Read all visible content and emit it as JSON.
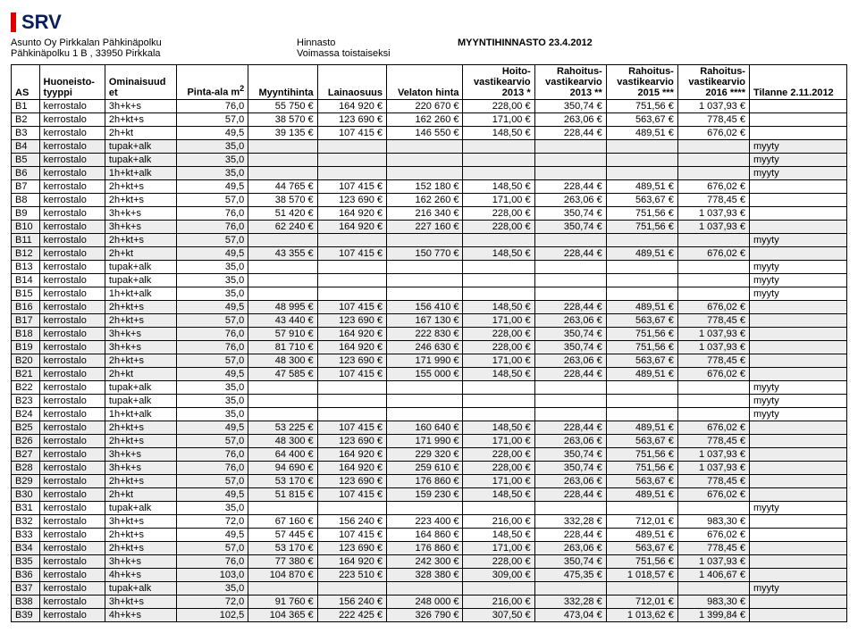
{
  "logo_text": "SRV",
  "header": {
    "line1_left": "Asunto Oy Pirkkalan Pähkinäpolku",
    "line1_mid": "Hinnasto",
    "line1_right": "MYYNTIHINNASTO 23.4.2012",
    "line2_left": "Pähkinäpolku 1 B , 33950 Pirkkala",
    "line2_mid": "Voimassa toistaiseksi"
  },
  "columns": [
    {
      "key": "as",
      "label": "AS",
      "align": "left"
    },
    {
      "key": "huoneisto",
      "label": "Huoneisto-<br>tyyppi",
      "align": "left"
    },
    {
      "key": "omin",
      "label": "Ominaisuud<br>et",
      "align": "left"
    },
    {
      "key": "pinta",
      "label": "Pinta-ala m<sup>2</sup>",
      "align": "right"
    },
    {
      "key": "myyntihinta",
      "label": "Myyntihinta",
      "align": "right"
    },
    {
      "key": "lainaosuus",
      "label": "Lainaosuus",
      "align": "right"
    },
    {
      "key": "velaton",
      "label": "Velaton hinta",
      "align": "right"
    },
    {
      "key": "hoito",
      "label": "Hoito-<br>vastikearvio<br>2013 *",
      "align": "right"
    },
    {
      "key": "r2013",
      "label": "Rahoitus-<br>vastikearvio<br>2013 **",
      "align": "right"
    },
    {
      "key": "r2015",
      "label": "Rahoitus-<br>vastikearvio<br>2015 ***",
      "align": "right"
    },
    {
      "key": "r2016",
      "label": "Rahoitus-<br>vastikearvio<br>2016 ****",
      "align": "right"
    },
    {
      "key": "tilanne",
      "label": "Tilanne 2.11.2012",
      "align": "left"
    }
  ],
  "rows": [
    {
      "as": "B1",
      "huoneisto": "kerrostalo",
      "omin": "3h+k+s",
      "pinta": "76,0",
      "myyntihinta": "55 750 €",
      "lainaosuus": "164 920 €",
      "velaton": "220 670 €",
      "hoito": "228,00 €",
      "r2013": "350,74 €",
      "r2015": "751,56 €",
      "r2016": "1 037,93 €",
      "tilanne": "",
      "shade": false
    },
    {
      "as": "B2",
      "huoneisto": "kerrostalo",
      "omin": "2h+kt+s",
      "pinta": "57,0",
      "myyntihinta": "38 570 €",
      "lainaosuus": "123 690 €",
      "velaton": "162 260 €",
      "hoito": "171,00 €",
      "r2013": "263,06 €",
      "r2015": "563,67 €",
      "r2016": "778,45 €",
      "tilanne": "",
      "shade": false
    },
    {
      "as": "B3",
      "huoneisto": "kerrostalo",
      "omin": "2h+kt",
      "pinta": "49,5",
      "myyntihinta": "39 135 €",
      "lainaosuus": "107 415 €",
      "velaton": "146 550 €",
      "hoito": "148,50 €",
      "r2013": "228,44 €",
      "r2015": "489,51 €",
      "r2016": "676,02 €",
      "tilanne": "",
      "shade": false
    },
    {
      "as": "B4",
      "huoneisto": "kerrostalo",
      "omin": "tupak+alk",
      "pinta": "35,0",
      "myyntihinta": "",
      "lainaosuus": "",
      "velaton": "",
      "hoito": "",
      "r2013": "",
      "r2015": "",
      "r2016": "",
      "tilanne": "myyty",
      "shade": true
    },
    {
      "as": "B5",
      "huoneisto": "kerrostalo",
      "omin": "tupak+alk",
      "pinta": "35,0",
      "myyntihinta": "",
      "lainaosuus": "",
      "velaton": "",
      "hoito": "",
      "r2013": "",
      "r2015": "",
      "r2016": "",
      "tilanne": "myyty",
      "shade": true
    },
    {
      "as": "B6",
      "huoneisto": "kerrostalo",
      "omin": "1h+kt+alk",
      "pinta": "35,0",
      "myyntihinta": "",
      "lainaosuus": "",
      "velaton": "",
      "hoito": "",
      "r2013": "",
      "r2015": "",
      "r2016": "",
      "tilanne": "myyty",
      "shade": true
    },
    {
      "as": "B7",
      "huoneisto": "kerrostalo",
      "omin": "2h+kt+s",
      "pinta": "49,5",
      "myyntihinta": "44 765 €",
      "lainaosuus": "107 415 €",
      "velaton": "152 180 €",
      "hoito": "148,50 €",
      "r2013": "228,44 €",
      "r2015": "489,51 €",
      "r2016": "676,02 €",
      "tilanne": "",
      "shade": false
    },
    {
      "as": "B8",
      "huoneisto": "kerrostalo",
      "omin": "2h+kt+s",
      "pinta": "57,0",
      "myyntihinta": "38 570 €",
      "lainaosuus": "123 690 €",
      "velaton": "162 260 €",
      "hoito": "171,00 €",
      "r2013": "263,06 €",
      "r2015": "563,67 €",
      "r2016": "778,45 €",
      "tilanne": "",
      "shade": false
    },
    {
      "as": "B9",
      "huoneisto": "kerrostalo",
      "omin": "3h+k+s",
      "pinta": "76,0",
      "myyntihinta": "51 420 €",
      "lainaosuus": "164 920 €",
      "velaton": "216 340 €",
      "hoito": "228,00 €",
      "r2013": "350,74 €",
      "r2015": "751,56 €",
      "r2016": "1 037,93 €",
      "tilanne": "",
      "shade": false
    },
    {
      "as": "B10",
      "huoneisto": "kerrostalo",
      "omin": "3h+k+s",
      "pinta": "76,0",
      "myyntihinta": "62 240 €",
      "lainaosuus": "164 920 €",
      "velaton": "227 160 €",
      "hoito": "228,00 €",
      "r2013": "350,74 €",
      "r2015": "751,56 €",
      "r2016": "1 037,93 €",
      "tilanne": "",
      "shade": true
    },
    {
      "as": "B11",
      "huoneisto": "kerrostalo",
      "omin": "2h+kt+s",
      "pinta": "57,0",
      "myyntihinta": "",
      "lainaosuus": "",
      "velaton": "",
      "hoito": "",
      "r2013": "",
      "r2015": "",
      "r2016": "",
      "tilanne": "myyty",
      "shade": true
    },
    {
      "as": "B12",
      "huoneisto": "kerrostalo",
      "omin": "2h+kt",
      "pinta": "49,5",
      "myyntihinta": "43 355 €",
      "lainaosuus": "107 415 €",
      "velaton": "150 770 €",
      "hoito": "148,50 €",
      "r2013": "228,44 €",
      "r2015": "489,51 €",
      "r2016": "676,02 €",
      "tilanne": "",
      "shade": true
    },
    {
      "as": "B13",
      "huoneisto": "kerrostalo",
      "omin": "tupak+alk",
      "pinta": "35,0",
      "myyntihinta": "",
      "lainaosuus": "",
      "velaton": "",
      "hoito": "",
      "r2013": "",
      "r2015": "",
      "r2016": "",
      "tilanne": "myyty",
      "shade": false
    },
    {
      "as": "B14",
      "huoneisto": "kerrostalo",
      "omin": "tupak+alk",
      "pinta": "35,0",
      "myyntihinta": "",
      "lainaosuus": "",
      "velaton": "",
      "hoito": "",
      "r2013": "",
      "r2015": "",
      "r2016": "",
      "tilanne": "myyty",
      "shade": false
    },
    {
      "as": "B15",
      "huoneisto": "kerrostalo",
      "omin": "1h+kt+alk",
      "pinta": "35,0",
      "myyntihinta": "",
      "lainaosuus": "",
      "velaton": "",
      "hoito": "",
      "r2013": "",
      "r2015": "",
      "r2016": "",
      "tilanne": "myyty",
      "shade": false
    },
    {
      "as": "B16",
      "huoneisto": "kerrostalo",
      "omin": "2h+kt+s",
      "pinta": "49,5",
      "myyntihinta": "48 995 €",
      "lainaosuus": "107 415 €",
      "velaton": "156 410 €",
      "hoito": "148,50 €",
      "r2013": "228,44 €",
      "r2015": "489,51 €",
      "r2016": "676,02 €",
      "tilanne": "",
      "shade": true
    },
    {
      "as": "B17",
      "huoneisto": "kerrostalo",
      "omin": "2h+kt+s",
      "pinta": "57,0",
      "myyntihinta": "43 440 €",
      "lainaosuus": "123 690 €",
      "velaton": "167 130 €",
      "hoito": "171,00 €",
      "r2013": "263,06 €",
      "r2015": "563,67 €",
      "r2016": "778,45 €",
      "tilanne": "",
      "shade": true
    },
    {
      "as": "B18",
      "huoneisto": "kerrostalo",
      "omin": "3h+k+s",
      "pinta": "76,0",
      "myyntihinta": "57 910 €",
      "lainaosuus": "164 920 €",
      "velaton": "222 830 €",
      "hoito": "228,00 €",
      "r2013": "350,74 €",
      "r2015": "751,56 €",
      "r2016": "1 037,93 €",
      "tilanne": "",
      "shade": true
    },
    {
      "as": "B19",
      "huoneisto": "kerrostalo",
      "omin": "3h+k+s",
      "pinta": "76,0",
      "myyntihinta": "81 710 €",
      "lainaosuus": "164 920 €",
      "velaton": "246 630 €",
      "hoito": "228,00 €",
      "r2013": "350,74 €",
      "r2015": "751,56 €",
      "r2016": "1 037,93 €",
      "tilanne": "",
      "shade": true
    },
    {
      "as": "B20",
      "huoneisto": "kerrostalo",
      "omin": "2h+kt+s",
      "pinta": "57,0",
      "myyntihinta": "48 300 €",
      "lainaosuus": "123 690 €",
      "velaton": "171 990 €",
      "hoito": "171,00 €",
      "r2013": "263,06 €",
      "r2015": "563,67 €",
      "r2016": "778,45 €",
      "tilanne": "",
      "shade": true
    },
    {
      "as": "B21",
      "huoneisto": "kerrostalo",
      "omin": "2h+kt",
      "pinta": "49,5",
      "myyntihinta": "47 585 €",
      "lainaosuus": "107 415 €",
      "velaton": "155 000 €",
      "hoito": "148,50 €",
      "r2013": "228,44 €",
      "r2015": "489,51 €",
      "r2016": "676,02 €",
      "tilanne": "",
      "shade": true
    },
    {
      "as": "B22",
      "huoneisto": "kerrostalo",
      "omin": "tupak+alk",
      "pinta": "35,0",
      "myyntihinta": "",
      "lainaosuus": "",
      "velaton": "",
      "hoito": "",
      "r2013": "",
      "r2015": "",
      "r2016": "",
      "tilanne": "myyty",
      "shade": false
    },
    {
      "as": "B23",
      "huoneisto": "kerrostalo",
      "omin": "tupak+alk",
      "pinta": "35,0",
      "myyntihinta": "",
      "lainaosuus": "",
      "velaton": "",
      "hoito": "",
      "r2013": "",
      "r2015": "",
      "r2016": "",
      "tilanne": "myyty",
      "shade": false
    },
    {
      "as": "B24",
      "huoneisto": "kerrostalo",
      "omin": "1h+kt+alk",
      "pinta": "35,0",
      "myyntihinta": "",
      "lainaosuus": "",
      "velaton": "",
      "hoito": "",
      "r2013": "",
      "r2015": "",
      "r2016": "",
      "tilanne": "myyty",
      "shade": false
    },
    {
      "as": "B25",
      "huoneisto": "kerrostalo",
      "omin": "2h+kt+s",
      "pinta": "49,5",
      "myyntihinta": "53 225 €",
      "lainaosuus": "107 415 €",
      "velaton": "160 640 €",
      "hoito": "148,50 €",
      "r2013": "228,44 €",
      "r2015": "489,51 €",
      "r2016": "676,02 €",
      "tilanne": "",
      "shade": true
    },
    {
      "as": "B26",
      "huoneisto": "kerrostalo",
      "omin": "2h+kt+s",
      "pinta": "57,0",
      "myyntihinta": "48 300 €",
      "lainaosuus": "123 690 €",
      "velaton": "171 990 €",
      "hoito": "171,00 €",
      "r2013": "263,06 €",
      "r2015": "563,67 €",
      "r2016": "778,45 €",
      "tilanne": "",
      "shade": true
    },
    {
      "as": "B27",
      "huoneisto": "kerrostalo",
      "omin": "3h+k+s",
      "pinta": "76,0",
      "myyntihinta": "64 400 €",
      "lainaosuus": "164 920 €",
      "velaton": "229 320 €",
      "hoito": "228,00 €",
      "r2013": "350,74 €",
      "r2015": "751,56 €",
      "r2016": "1 037,93 €",
      "tilanne": "",
      "shade": true
    },
    {
      "as": "B28",
      "huoneisto": "kerrostalo",
      "omin": "3h+k+s",
      "pinta": "76,0",
      "myyntihinta": "94 690 €",
      "lainaosuus": "164 920 €",
      "velaton": "259 610 €",
      "hoito": "228,00 €",
      "r2013": "350,74 €",
      "r2015": "751,56 €",
      "r2016": "1 037,93 €",
      "tilanne": "",
      "shade": true
    },
    {
      "as": "B29",
      "huoneisto": "kerrostalo",
      "omin": "2h+kt+s",
      "pinta": "57,0",
      "myyntihinta": "53 170 €",
      "lainaosuus": "123 690 €",
      "velaton": "176 860 €",
      "hoito": "171,00 €",
      "r2013": "263,06 €",
      "r2015": "563,67 €",
      "r2016": "778,45 €",
      "tilanne": "",
      "shade": true
    },
    {
      "as": "B30",
      "huoneisto": "kerrostalo",
      "omin": "2h+kt",
      "pinta": "49,5",
      "myyntihinta": "51 815 €",
      "lainaosuus": "107 415 €",
      "velaton": "159 230 €",
      "hoito": "148,50 €",
      "r2013": "228,44 €",
      "r2015": "489,51 €",
      "r2016": "676,02 €",
      "tilanne": "",
      "shade": true
    },
    {
      "as": "B31",
      "huoneisto": "kerrostalo",
      "omin": "tupak+alk",
      "pinta": "35,0",
      "myyntihinta": "",
      "lainaosuus": "",
      "velaton": "",
      "hoito": "",
      "r2013": "",
      "r2015": "",
      "r2016": "",
      "tilanne": "myyty",
      "shade": false
    },
    {
      "as": "B32",
      "huoneisto": "kerrostalo",
      "omin": "3h+kt+s",
      "pinta": "72,0",
      "myyntihinta": "67 160 €",
      "lainaosuus": "156 240 €",
      "velaton": "223 400 €",
      "hoito": "216,00 €",
      "r2013": "332,28 €",
      "r2015": "712,01 €",
      "r2016": "983,30 €",
      "tilanne": "",
      "shade": false
    },
    {
      "as": "B33",
      "huoneisto": "kerrostalo",
      "omin": "2h+kt+s",
      "pinta": "49,5",
      "myyntihinta": "57 445 €",
      "lainaosuus": "107 415 €",
      "velaton": "164 860 €",
      "hoito": "148,50 €",
      "r2013": "228,44 €",
      "r2015": "489,51 €",
      "r2016": "676,02 €",
      "tilanne": "",
      "shade": false
    },
    {
      "as": "B34",
      "huoneisto": "kerrostalo",
      "omin": "2h+kt+s",
      "pinta": "57,0",
      "myyntihinta": "53 170 €",
      "lainaosuus": "123 690 €",
      "velaton": "176 860 €",
      "hoito": "171,00 €",
      "r2013": "263,06 €",
      "r2015": "563,67 €",
      "r2016": "778,45 €",
      "tilanne": "",
      "shade": true
    },
    {
      "as": "B35",
      "huoneisto": "kerrostalo",
      "omin": "3h+k+s",
      "pinta": "76,0",
      "myyntihinta": "77 380 €",
      "lainaosuus": "164 920 €",
      "velaton": "242 300 €",
      "hoito": "228,00 €",
      "r2013": "350,74 €",
      "r2015": "751,56 €",
      "r2016": "1 037,93 €",
      "tilanne": "",
      "shade": true
    },
    {
      "as": "B36",
      "huoneisto": "kerrostalo",
      "omin": "4h+k+s",
      "pinta": "103,0",
      "myyntihinta": "104 870 €",
      "lainaosuus": "223 510 €",
      "velaton": "328 380 €",
      "hoito": "309,00 €",
      "r2013": "475,35 €",
      "r2015": "1 018,57 €",
      "r2016": "1 406,67 €",
      "tilanne": "",
      "shade": true
    },
    {
      "as": "B37",
      "huoneisto": "kerrostalo",
      "omin": "tupak+alk",
      "pinta": "35,0",
      "myyntihinta": "",
      "lainaosuus": "",
      "velaton": "",
      "hoito": "",
      "r2013": "",
      "r2015": "",
      "r2016": "",
      "tilanne": "myyty",
      "shade": true
    },
    {
      "as": "B38",
      "huoneisto": "kerrostalo",
      "omin": "3h+kt+s",
      "pinta": "72,0",
      "myyntihinta": "91 760 €",
      "lainaosuus": "156 240 €",
      "velaton": "248 000 €",
      "hoito": "216,00 €",
      "r2013": "332,28 €",
      "r2015": "712,01 €",
      "r2016": "983,30 €",
      "tilanne": "",
      "shade": true
    },
    {
      "as": "B39",
      "huoneisto": "kerrostalo",
      "omin": "4h+k+s",
      "pinta": "102,5",
      "myyntihinta": "104 365 €",
      "lainaosuus": "222 425 €",
      "velaton": "326 790 €",
      "hoito": "307,50 €",
      "r2013": "473,04 €",
      "r2015": "1 013,62 €",
      "r2016": "1 399,84 €",
      "tilanne": "",
      "shade": true
    }
  ]
}
